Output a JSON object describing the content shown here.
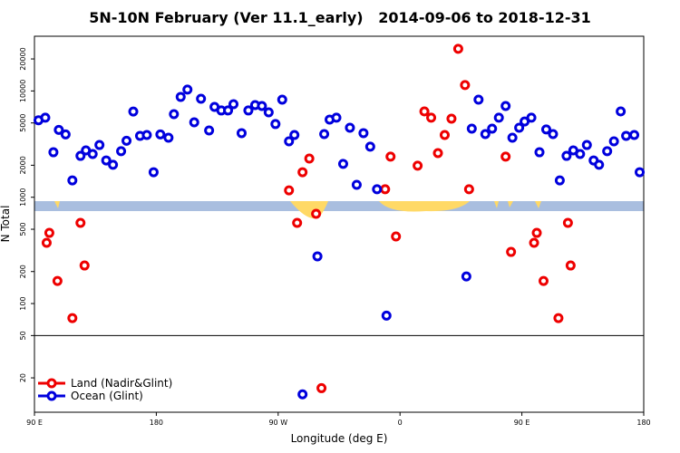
{
  "chart_data": {
    "type": "scatter",
    "title": "5N-10N February (Ver 11.1_early)   2014-09-06 to 2018-12-31",
    "x_label": "Longitude (deg E)",
    "y_label": "N Total",
    "y_log": true,
    "xlim": [
      90,
      540
    ],
    "ylim": [
      9.5,
      32700
    ],
    "xticks": [
      {
        "value": 90,
        "label": "90 E"
      },
      180,
      {
        "value": 270,
        "label": "90 W"
      },
      {
        "value": 360,
        "label": "0"
      },
      {
        "value": 450,
        "label": "90 E"
      },
      180
    ],
    "yticks": [
      20,
      50,
      100,
      200,
      500,
      1000,
      2000,
      5000,
      10000,
      20000
    ],
    "legend": "bottom-left",
    "series": [
      {
        "name": "Land (Nadir&Glint)",
        "color": "#ee0000",
        "x": [
          99,
          101,
          107,
          118,
          124,
          127,
          278,
          284,
          288,
          293,
          298,
          302,
          349,
          353,
          357,
          373,
          378,
          383,
          388,
          393,
          398,
          403,
          408,
          411,
          438,
          442,
          459,
          461,
          466,
          477,
          484,
          486
        ],
        "values": [
          373,
          462,
          163,
          73,
          574,
          228,
          1160,
          574,
          1720,
          2310,
          698,
          16,
          1190,
          2410,
          428,
          1980,
          6420,
          5600,
          2600,
          3850,
          5480,
          24900,
          11350,
          1190,
          2410,
          306,
          373,
          462,
          163,
          73,
          574,
          228
        ]
      },
      {
        "name": "Ocean (Glint)",
        "color": "#0000dd",
        "x": [
          93,
          98,
          104,
          108,
          113,
          118,
          124,
          128,
          133,
          138,
          143,
          148,
          154,
          158,
          163,
          168,
          173,
          178,
          183,
          189,
          193,
          198,
          203,
          208,
          213,
          219,
          223,
          228,
          233,
          237,
          243,
          248,
          253,
          258,
          263,
          268,
          273,
          278,
          282,
          288,
          299,
          304,
          308,
          313,
          318,
          323,
          328,
          333,
          338,
          343,
          350,
          409,
          413,
          418,
          423,
          428,
          433,
          438,
          443,
          448,
          452,
          457,
          463,
          468,
          473,
          478,
          483,
          488,
          493,
          498,
          503,
          507,
          513,
          518,
          523,
          527,
          533,
          537
        ],
        "values": [
          5300,
          5600,
          2650,
          4300,
          3900,
          1440,
          2450,
          2760,
          2550,
          3100,
          2220,
          2020,
          2710,
          3400,
          6400,
          3780,
          3850,
          1720,
          3900,
          3630,
          6050,
          8790,
          10300,
          5070,
          8450,
          4250,
          7080,
          6550,
          6550,
          7510,
          4010,
          6550,
          7360,
          7220,
          6290,
          4880,
          8280,
          3360,
          3850,
          14,
          278,
          3930,
          5380,
          5600,
          2060,
          4510,
          1310,
          4010,
          2990,
          1190,
          77,
          180,
          4420,
          8280,
          3930,
          4420,
          5600,
          7220,
          3630,
          4510,
          5160,
          5600,
          2650,
          4340,
          3930,
          1440,
          2450,
          2760,
          2550,
          3100,
          2220,
          2020,
          2710,
          3360,
          6420,
          3780,
          3850,
          1720
        ]
      }
    ]
  }
}
